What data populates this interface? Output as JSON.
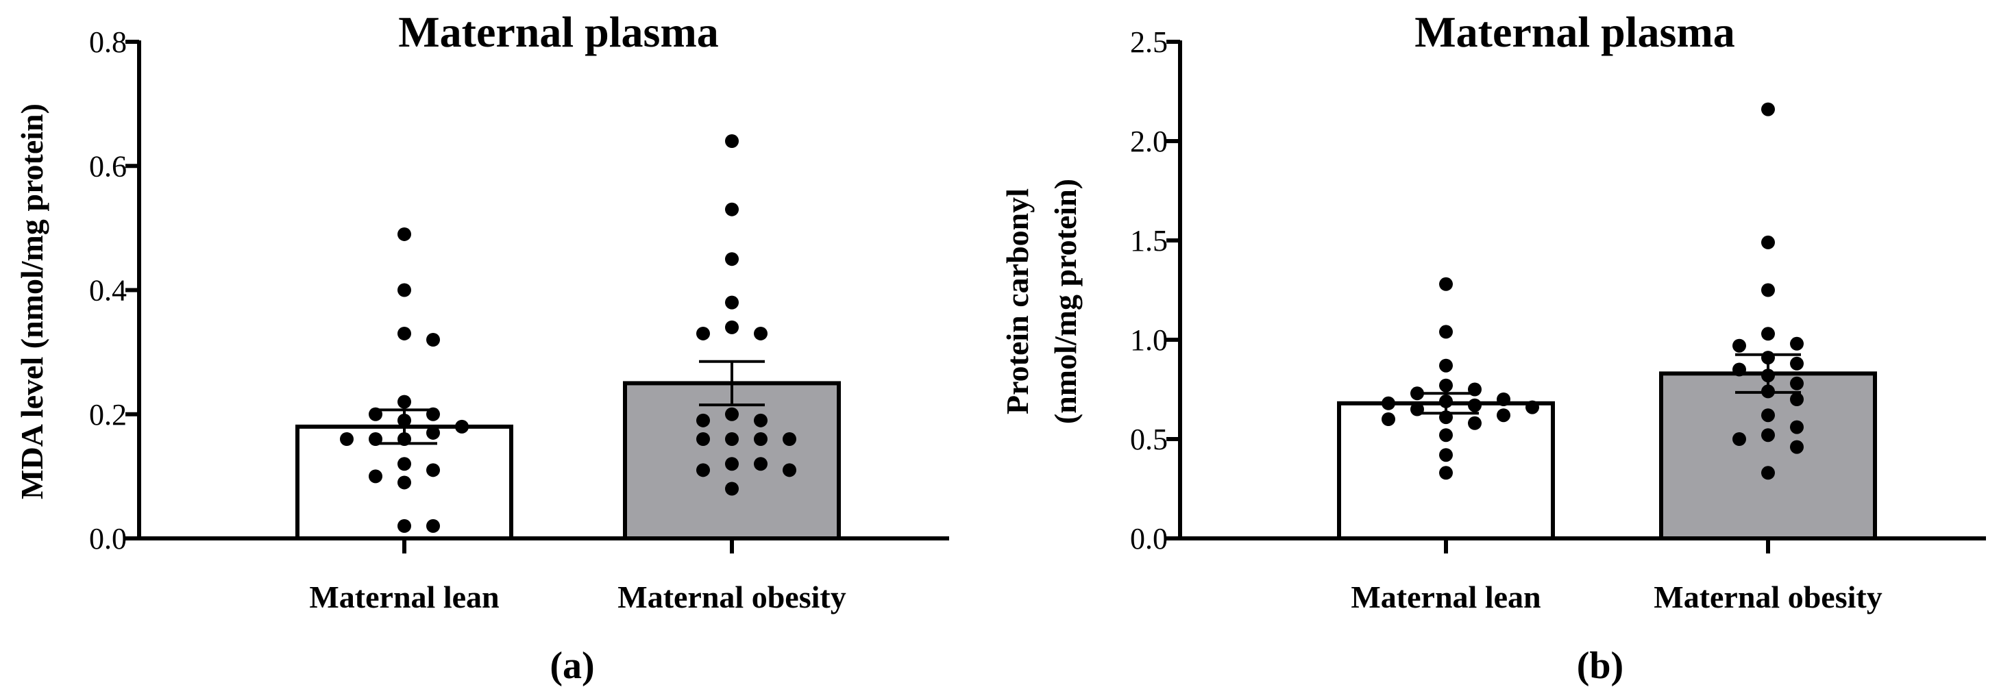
{
  "chart_data": [
    {
      "type": "bar",
      "panel_label": "(a)",
      "title": "Maternal plasma",
      "ylabel_lines": [
        "MDA level (nmol/mg protein)"
      ],
      "categories": [
        "Maternal lean",
        "Maternal obesity"
      ],
      "values": [
        0.18,
        0.25
      ],
      "errors": [
        0.027,
        0.035
      ],
      "bar_colors": [
        "#ffffff",
        "#a2a2a6"
      ],
      "ylim": [
        0,
        0.8
      ],
      "yticks": [
        0.0,
        0.2,
        0.4,
        0.6,
        0.8
      ],
      "ytick_labels": [
        "0.0",
        "0.2",
        "0.4",
        "0.6",
        "0.8"
      ],
      "points": [
        [
          0.49,
          0.4,
          0.33,
          0.32,
          0.22,
          0.2,
          0.2,
          0.19,
          0.18,
          0.17,
          0.16,
          0.16,
          0.16,
          0.12,
          0.11,
          0.1,
          0.09,
          0.02,
          0.02
        ],
        [
          0.64,
          0.53,
          0.45,
          0.38,
          0.34,
          0.33,
          0.33,
          0.2,
          0.19,
          0.19,
          0.16,
          0.16,
          0.16,
          0.16,
          0.12,
          0.12,
          0.11,
          0.11,
          0.08
        ]
      ]
    },
    {
      "type": "bar",
      "panel_label": "(b)",
      "title": "Maternal plasma",
      "ylabel_lines": [
        "Protein carbonyl",
        "(nmol/mg protein)"
      ],
      "categories": [
        "Maternal lean",
        "Maternal obesity"
      ],
      "values": [
        0.68,
        0.83
      ],
      "errors": [
        0.05,
        0.095
      ],
      "bar_colors": [
        "#ffffff",
        "#a2a2a6"
      ],
      "ylim": [
        0,
        2.5
      ],
      "yticks": [
        0.0,
        0.5,
        1.0,
        1.5,
        2.0,
        2.5
      ],
      "ytick_labels": [
        "0.0",
        "0.5",
        "1.0",
        "1.5",
        "2.0",
        "2.5"
      ],
      "points": [
        [
          1.28,
          1.04,
          0.87,
          0.77,
          0.75,
          0.73,
          0.7,
          0.69,
          0.68,
          0.67,
          0.66,
          0.65,
          0.62,
          0.61,
          0.6,
          0.58,
          0.52,
          0.42,
          0.33
        ],
        [
          2.16,
          1.49,
          1.25,
          1.03,
          0.98,
          0.97,
          0.91,
          0.88,
          0.85,
          0.82,
          0.78,
          0.74,
          0.7,
          0.62,
          0.56,
          0.52,
          0.5,
          0.46,
          0.33
        ]
      ]
    }
  ]
}
